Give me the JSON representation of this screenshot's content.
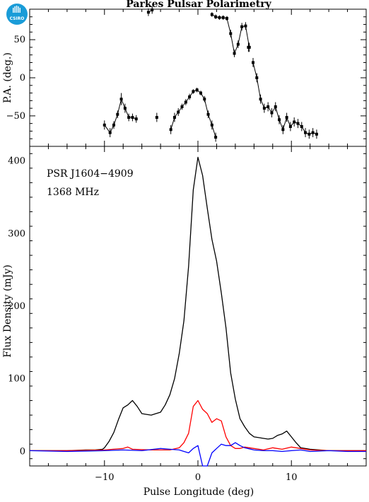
{
  "logo": {
    "text": "CSIRO",
    "color": "#1a9cd8"
  },
  "chart_data": [
    {
      "type": "scatter",
      "panel": "position-angle",
      "title": "Parkes Pulsar Polarimetry",
      "ylabel": "P.A. (deg.)",
      "xlim": [
        -18,
        18
      ],
      "ylim": [
        -90,
        90
      ],
      "yticks": [
        50,
        0,
        -50
      ],
      "yticklabels": [
        "50",
        "0",
        "−50"
      ],
      "marker_color": "#000000",
      "segments": [
        {
          "points": [
            [
              -10.0,
              -62,
              6
            ],
            [
              -9.4,
              -72,
              6
            ],
            [
              -9.0,
              -62,
              5
            ],
            [
              -8.6,
              -48,
              5
            ],
            [
              -8.2,
              -28,
              8
            ],
            [
              -7.8,
              -40,
              6
            ],
            [
              -7.4,
              -52,
              5
            ],
            [
              -7.0,
              -52,
              5
            ],
            [
              -6.6,
              -54,
              5
            ]
          ]
        },
        {
          "points": [
            [
              -4.4,
              -52,
              6
            ]
          ]
        },
        {
          "points": [
            [
              -2.9,
              -68,
              6
            ],
            [
              -2.5,
              -52,
              6
            ],
            [
              -2.1,
              -45,
              5
            ],
            [
              -1.7,
              -38,
              4
            ],
            [
              -1.3,
              -32,
              4
            ],
            [
              -0.9,
              -25,
              4
            ],
            [
              -0.5,
              -18,
              3
            ],
            [
              -0.1,
              -16,
              3
            ],
            [
              0.3,
              -20,
              3
            ],
            [
              0.7,
              -28,
              4
            ],
            [
              1.1,
              -48,
              5
            ],
            [
              1.5,
              -62,
              6
            ],
            [
              1.9,
              -78,
              6
            ]
          ]
        },
        {
          "points": [
            [
              -5.3,
              86,
              5
            ],
            [
              -4.9,
              89,
              5
            ]
          ]
        },
        {
          "points": [
            [
              1.5,
              83,
              3
            ],
            [
              1.9,
              80,
              3
            ],
            [
              2.3,
              79,
              3
            ],
            [
              2.7,
              79,
              3
            ],
            [
              3.1,
              78,
              3
            ],
            [
              3.5,
              58,
              5
            ],
            [
              3.9,
              32,
              5
            ],
            [
              4.3,
              44,
              5
            ],
            [
              4.7,
              67,
              5
            ],
            [
              5.1,
              68,
              5
            ],
            [
              5.5,
              40,
              6
            ]
          ]
        },
        {
          "points": [
            [
              5.4,
              40,
              6
            ]
          ]
        },
        {
          "points": [
            [
              5.9,
              20,
              6
            ],
            [
              6.3,
              0,
              6
            ],
            [
              6.7,
              -28,
              6
            ],
            [
              7.1,
              -40,
              6
            ],
            [
              7.5,
              -38,
              6
            ],
            [
              7.9,
              -46,
              6
            ],
            [
              8.3,
              -38,
              6
            ],
            [
              8.7,
              -55,
              6
            ],
            [
              9.1,
              -68,
              6
            ],
            [
              9.5,
              -52,
              6
            ],
            [
              9.9,
              -64,
              6
            ],
            [
              10.3,
              -58,
              6
            ],
            [
              10.7,
              -60,
              6
            ],
            [
              11.1,
              -64,
              6
            ],
            [
              11.5,
              -72,
              6
            ],
            [
              11.9,
              -74,
              6
            ],
            [
              12.3,
              -72,
              6
            ],
            [
              12.7,
              -74,
              6
            ]
          ]
        }
      ]
    },
    {
      "type": "line",
      "panel": "flux-density",
      "xlabel": "Pulse Longitude (deg)",
      "ylabel": "Flux Density (mJy)",
      "xlim": [
        -18,
        18
      ],
      "ylim": [
        -20,
        420
      ],
      "xticks": [
        -10,
        0,
        10
      ],
      "xticklabels": [
        "−10",
        "0",
        "10"
      ],
      "yticks": [
        0,
        100,
        200,
        300,
        400
      ],
      "yticklabels": [
        "0",
        "100",
        "200",
        "300",
        "400"
      ],
      "annotations": [
        "PSR J1604−4909",
        "1368 MHz"
      ],
      "series": [
        {
          "color": "#000000",
          "x": [
            -18,
            -16,
            -14,
            -12,
            -11,
            -10.2,
            -10,
            -9.5,
            -9,
            -8.5,
            -8,
            -7.5,
            -7,
            -6.5,
            -6,
            -5.5,
            -5,
            -4.5,
            -4,
            -3.5,
            -3,
            -2.5,
            -2,
            -1.5,
            -1,
            -0.5,
            0,
            0.5,
            1,
            1.5,
            2,
            2.5,
            3,
            3.5,
            4,
            4.5,
            5,
            5.5,
            6,
            6.5,
            7,
            7.5,
            8,
            8.5,
            9,
            9.5,
            10,
            10.5,
            11,
            12,
            13,
            14,
            16,
            18
          ],
          "y": [
            1,
            1,
            1,
            2,
            2,
            3,
            5,
            14,
            26,
            44,
            60,
            64,
            70,
            62,
            52,
            51,
            50,
            52,
            54,
            64,
            78,
            100,
            135,
            180,
            255,
            360,
            405,
            380,
            335,
            292,
            262,
            218,
            170,
            108,
            72,
            45,
            34,
            25,
            20,
            19,
            18,
            17,
            18,
            22,
            24,
            28,
            20,
            12,
            5,
            3,
            2,
            1,
            1,
            1
          ]
        },
        {
          "color": "#ff0000",
          "x": [
            -18,
            -14,
            -10,
            -8,
            -7.5,
            -7,
            -5,
            -3,
            -2,
            -1.5,
            -1,
            -0.5,
            0,
            0.5,
            1,
            1.5,
            2,
            2.5,
            3,
            3.5,
            4,
            4.5,
            5,
            6,
            7,
            8,
            9,
            10,
            11,
            12,
            14,
            16,
            18
          ],
          "y": [
            1,
            1,
            2,
            4,
            6,
            3,
            2,
            2,
            5,
            12,
            25,
            62,
            70,
            58,
            52,
            40,
            45,
            42,
            20,
            8,
            4,
            4,
            6,
            4,
            2,
            5,
            3,
            6,
            4,
            2,
            1,
            1,
            1
          ]
        },
        {
          "color": "#0000ff",
          "x": [
            -18,
            -14,
            -10,
            -8,
            -6,
            -4,
            -3,
            -2,
            -1,
            -0.5,
            0,
            0.5,
            1,
            1.5,
            2,
            2.5,
            3,
            3.5,
            4,
            4.5,
            5,
            6,
            7,
            8,
            9,
            10,
            11,
            12,
            14,
            16,
            18
          ],
          "y": [
            1,
            0,
            1,
            2,
            1,
            4,
            3,
            2,
            -2,
            4,
            8,
            -20,
            -20,
            -2,
            4,
            10,
            8,
            8,
            12,
            8,
            5,
            2,
            1,
            1,
            0,
            1,
            2,
            0,
            1,
            0,
            0
          ]
        }
      ]
    }
  ]
}
